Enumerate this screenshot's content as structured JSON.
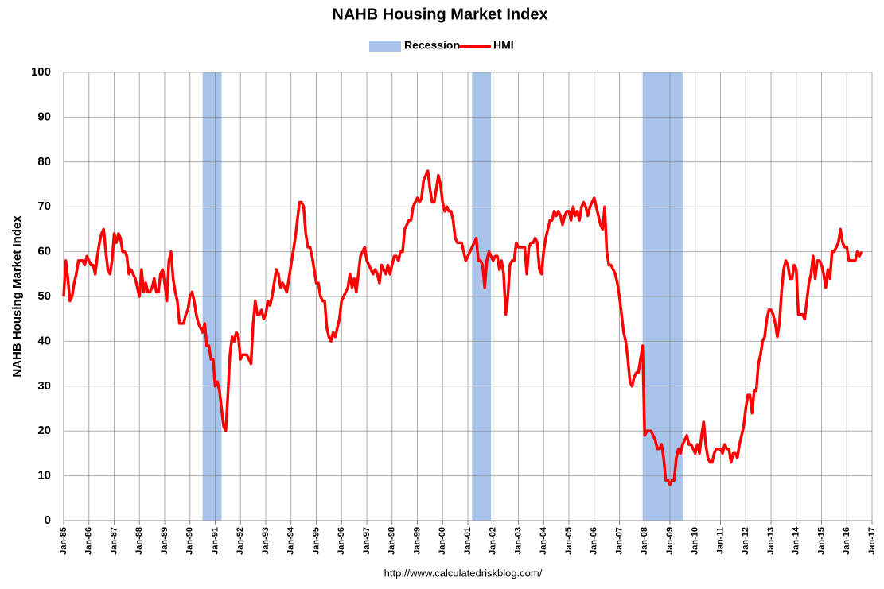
{
  "chart_data": {
    "type": "line",
    "title": "NAHB Housing Market Index",
    "y_label": "NAHB Housing Market Index",
    "source": "http://www.calculatedriskblog.com/",
    "legend": "top",
    "grid": true,
    "bands": {
      "name": "Recession",
      "color": "#a9c4eb",
      "ranges": [
        {
          "start": "1990-07",
          "end": "1991-03"
        },
        {
          "start": "2001-03",
          "end": "2001-11"
        },
        {
          "start": "2007-12",
          "end": "2009-06"
        }
      ]
    },
    "x": [
      "1985-01",
      "1985-02",
      "1985-03",
      "1985-04",
      "1985-05",
      "1985-06",
      "1985-07",
      "1985-08",
      "1985-09",
      "1985-10",
      "1985-11",
      "1985-12",
      "1986-01",
      "1986-02",
      "1986-03",
      "1986-04",
      "1986-05",
      "1986-06",
      "1986-07",
      "1986-08",
      "1986-09",
      "1986-10",
      "1986-11",
      "1986-12",
      "1987-01",
      "1987-02",
      "1987-03",
      "1987-04",
      "1987-05",
      "1987-06",
      "1987-07",
      "1987-08",
      "1987-09",
      "1987-10",
      "1987-11",
      "1987-12",
      "1988-01",
      "1988-02",
      "1988-03",
      "1988-04",
      "1988-05",
      "1988-06",
      "1988-07",
      "1988-08",
      "1988-09",
      "1988-10",
      "1988-11",
      "1988-12",
      "1989-01",
      "1989-02",
      "1989-03",
      "1989-04",
      "1989-05",
      "1989-06",
      "1989-07",
      "1989-08",
      "1989-09",
      "1989-10",
      "1989-11",
      "1989-12",
      "1990-01",
      "1990-02",
      "1990-03",
      "1990-04",
      "1990-05",
      "1990-06",
      "1990-07",
      "1990-08",
      "1990-09",
      "1990-10",
      "1990-11",
      "1990-12",
      "1991-01",
      "1991-02",
      "1991-03",
      "1991-04",
      "1991-05",
      "1991-06",
      "1991-07",
      "1991-08",
      "1991-09",
      "1991-10",
      "1991-11",
      "1991-12",
      "1992-01",
      "1992-02",
      "1992-03",
      "1992-04",
      "1992-05",
      "1992-06",
      "1992-07",
      "1992-08",
      "1992-09",
      "1992-10",
      "1992-11",
      "1992-12",
      "1993-01",
      "1993-02",
      "1993-03",
      "1993-04",
      "1993-05",
      "1993-06",
      "1993-07",
      "1993-08",
      "1993-09",
      "1993-10",
      "1993-11",
      "1993-12",
      "1994-01",
      "1994-02",
      "1994-03",
      "1994-04",
      "1994-05",
      "1994-06",
      "1994-07",
      "1994-08",
      "1994-09",
      "1994-10",
      "1994-11",
      "1994-12",
      "1995-01",
      "1995-02",
      "1995-03",
      "1995-04",
      "1995-05",
      "1995-06",
      "1995-07",
      "1995-08",
      "1995-09",
      "1995-10",
      "1995-11",
      "1995-12",
      "1996-01",
      "1996-02",
      "1996-03",
      "1996-04",
      "1996-05",
      "1996-06",
      "1996-07",
      "1996-08",
      "1996-09",
      "1996-10",
      "1996-11",
      "1996-12",
      "1997-01",
      "1997-02",
      "1997-03",
      "1997-04",
      "1997-05",
      "1997-06",
      "1997-07",
      "1997-08",
      "1997-09",
      "1997-10",
      "1997-11",
      "1997-12",
      "1998-01",
      "1998-02",
      "1998-03",
      "1998-04",
      "1998-05",
      "1998-06",
      "1998-07",
      "1998-08",
      "1998-09",
      "1998-10",
      "1998-11",
      "1998-12",
      "1999-01",
      "1999-02",
      "1999-03",
      "1999-04",
      "1999-05",
      "1999-06",
      "1999-07",
      "1999-08",
      "1999-09",
      "1999-10",
      "1999-11",
      "1999-12",
      "2000-01",
      "2000-02",
      "2000-03",
      "2000-04",
      "2000-05",
      "2000-06",
      "2000-07",
      "2000-08",
      "2000-09",
      "2000-10",
      "2000-11",
      "2000-12",
      "2001-01",
      "2001-02",
      "2001-03",
      "2001-04",
      "2001-05",
      "2001-06",
      "2001-07",
      "2001-08",
      "2001-09",
      "2001-10",
      "2001-11",
      "2001-12",
      "2002-01",
      "2002-02",
      "2002-03",
      "2002-04",
      "2002-05",
      "2002-06",
      "2002-07",
      "2002-08",
      "2002-09",
      "2002-10",
      "2002-11",
      "2002-12",
      "2003-01",
      "2003-02",
      "2003-03",
      "2003-04",
      "2003-05",
      "2003-06",
      "2003-07",
      "2003-08",
      "2003-09",
      "2003-10",
      "2003-11",
      "2003-12",
      "2004-01",
      "2004-02",
      "2004-03",
      "2004-04",
      "2004-05",
      "2004-06",
      "2004-07",
      "2004-08",
      "2004-09",
      "2004-10",
      "2004-11",
      "2004-12",
      "2005-01",
      "2005-02",
      "2005-03",
      "2005-04",
      "2005-05",
      "2005-06",
      "2005-07",
      "2005-08",
      "2005-09",
      "2005-10",
      "2005-11",
      "2005-12",
      "2006-01",
      "2006-02",
      "2006-03",
      "2006-04",
      "2006-05",
      "2006-06",
      "2006-07",
      "2006-08",
      "2006-09",
      "2006-10",
      "2006-11",
      "2006-12",
      "2007-01",
      "2007-02",
      "2007-03",
      "2007-04",
      "2007-05",
      "2007-06",
      "2007-07",
      "2007-08",
      "2007-09",
      "2007-10",
      "2007-11",
      "2007-12",
      "2008-01",
      "2008-02",
      "2008-03",
      "2008-04",
      "2008-05",
      "2008-06",
      "2008-07",
      "2008-08",
      "2008-09",
      "2008-10",
      "2008-11",
      "2008-12",
      "2009-01",
      "2009-02",
      "2009-03",
      "2009-04",
      "2009-05",
      "2009-06",
      "2009-07",
      "2009-08",
      "2009-09",
      "2009-10",
      "2009-11",
      "2009-12",
      "2010-01",
      "2010-02",
      "2010-03",
      "2010-04",
      "2010-05",
      "2010-06",
      "2010-07",
      "2010-08",
      "2010-09",
      "2010-10",
      "2010-11",
      "2010-12",
      "2011-01",
      "2011-02",
      "2011-03",
      "2011-04",
      "2011-05",
      "2011-06",
      "2011-07",
      "2011-08",
      "2011-09",
      "2011-10",
      "2011-11",
      "2011-12",
      "2012-01",
      "2012-02",
      "2012-03",
      "2012-04",
      "2012-05",
      "2012-06",
      "2012-07",
      "2012-08",
      "2012-09",
      "2012-10",
      "2012-11",
      "2012-12",
      "2013-01",
      "2013-02",
      "2013-03",
      "2013-04",
      "2013-05",
      "2013-06",
      "2013-07",
      "2013-08",
      "2013-09",
      "2013-10",
      "2013-11",
      "2013-12",
      "2014-01",
      "2014-02",
      "2014-03",
      "2014-04",
      "2014-05",
      "2014-06",
      "2014-07",
      "2014-08",
      "2014-09",
      "2014-10",
      "2014-11",
      "2014-12",
      "2015-01",
      "2015-02",
      "2015-03",
      "2015-04",
      "2015-05",
      "2015-06",
      "2015-07",
      "2015-08",
      "2015-09",
      "2015-10",
      "2015-11",
      "2015-12",
      "2016-01",
      "2016-02",
      "2016-03",
      "2016-04",
      "2016-05",
      "2016-06",
      "2016-07",
      "2016-08"
    ],
    "series": [
      {
        "name": "HMI",
        "color": "#ff0000",
        "values": [
          50,
          58,
          54,
          49,
          50,
          53,
          55,
          58,
          58,
          58,
          57,
          59,
          58,
          57,
          57,
          55,
          59,
          62,
          64,
          65,
          60,
          56,
          55,
          58,
          64,
          62,
          64,
          63,
          60,
          60,
          59,
          55,
          56,
          55,
          54,
          52,
          50,
          56,
          51,
          53,
          51,
          51,
          52,
          54,
          51,
          51,
          55,
          56,
          53,
          49,
          58,
          60,
          54,
          51,
          49,
          44,
          44,
          44,
          46,
          47,
          50,
          51,
          49,
          46,
          44,
          43,
          42,
          44,
          39,
          39,
          36,
          36,
          30,
          31,
          29,
          25,
          21,
          20,
          28,
          37,
          41,
          40,
          42,
          41,
          36,
          37,
          37,
          37,
          36,
          35,
          44,
          49,
          46,
          46,
          47,
          45,
          46,
          49,
          48,
          50,
          53,
          56,
          55,
          52,
          53,
          52,
          51,
          54,
          57,
          60,
          63,
          67,
          71,
          71,
          70,
          64,
          61,
          61,
          59,
          56,
          53,
          53,
          50,
          49,
          49,
          43,
          41,
          40,
          42,
          41,
          43,
          45,
          49,
          50,
          51,
          52,
          55,
          52,
          54,
          51,
          55,
          59,
          60,
          61,
          58,
          57,
          56,
          55,
          56,
          55,
          53,
          57,
          56,
          55,
          57,
          55,
          57,
          59,
          59,
          58,
          60,
          60,
          65,
          66,
          67,
          67,
          70,
          71,
          72,
          71,
          72,
          76,
          77,
          78,
          74,
          71,
          71,
          74,
          77,
          75,
          71,
          69,
          70,
          69,
          69,
          67,
          63,
          62,
          62,
          62,
          60,
          58,
          59,
          60,
          61,
          62,
          63,
          58,
          58,
          57,
          52,
          58,
          60,
          59,
          58,
          59,
          59,
          56,
          58,
          55,
          46,
          50,
          57,
          58,
          58,
          62,
          61,
          61,
          61,
          61,
          55,
          61,
          62,
          62,
          63,
          62,
          56,
          55,
          60,
          63,
          65,
          67,
          67,
          69,
          68,
          69,
          68,
          66,
          68,
          69,
          69,
          67,
          70,
          68,
          69,
          67,
          70,
          71,
          70,
          68,
          70,
          71,
          72,
          70,
          68,
          66,
          65,
          70,
          60,
          57,
          57,
          56,
          55,
          53,
          50,
          46,
          42,
          40,
          36,
          31,
          30,
          32,
          33,
          33,
          36,
          39,
          19,
          20,
          20,
          20,
          19,
          18,
          16,
          16,
          17,
          14,
          9,
          9,
          8,
          9,
          9,
          14,
          16,
          15,
          17,
          18,
          19,
          17,
          17,
          16,
          15,
          17,
          15,
          19,
          22,
          17,
          14,
          13,
          13,
          15,
          16,
          16,
          16,
          15,
          17,
          16,
          16,
          13,
          15,
          15,
          14,
          17,
          19,
          21,
          25,
          28,
          28,
          24,
          29,
          29,
          35,
          37,
          40,
          41,
          45,
          47,
          47,
          46,
          44,
          41,
          44,
          51,
          56,
          58,
          57,
          54,
          54,
          57,
          56,
          46,
          46,
          46,
          45,
          49,
          53,
          55,
          59,
          54,
          58,
          58,
          57,
          55,
          52,
          56,
          54,
          60,
          60,
          61,
          62,
          65,
          62,
          61,
          61,
          58,
          58,
          58,
          58,
          60,
          59,
          60
        ]
      }
    ],
    "xlim": [
      "1985-01",
      "2017-01"
    ],
    "xticks": [
      {
        "value": "1985-01",
        "label": "Jan-85"
      },
      {
        "value": "1986-01",
        "label": "Jan-86"
      },
      {
        "value": "1987-01",
        "label": "Jan-87"
      },
      {
        "value": "1988-01",
        "label": "Jan-88"
      },
      {
        "value": "1989-01",
        "label": "Jan-89"
      },
      {
        "value": "1990-01",
        "label": "Jan-90"
      },
      {
        "value": "1991-01",
        "label": "Jan-91"
      },
      {
        "value": "1992-01",
        "label": "Jan-92"
      },
      {
        "value": "1993-01",
        "label": "Jan-93"
      },
      {
        "value": "1994-01",
        "label": "Jan-94"
      },
      {
        "value": "1995-01",
        "label": "Jan-95"
      },
      {
        "value": "1996-01",
        "label": "Jan-96"
      },
      {
        "value": "1997-01",
        "label": "Jan-97"
      },
      {
        "value": "1998-01",
        "label": "Jan-98"
      },
      {
        "value": "1999-01",
        "label": "Jan-99"
      },
      {
        "value": "2000-01",
        "label": "Jan-00"
      },
      {
        "value": "2001-01",
        "label": "Jan-01"
      },
      {
        "value": "2002-01",
        "label": "Jan-02"
      },
      {
        "value": "2003-01",
        "label": "Jan-03"
      },
      {
        "value": "2004-01",
        "label": "Jan-04"
      },
      {
        "value": "2005-01",
        "label": "Jan-05"
      },
      {
        "value": "2006-01",
        "label": "Jan-06"
      },
      {
        "value": "2007-01",
        "label": "Jan-07"
      },
      {
        "value": "2008-01",
        "label": "Jan-08"
      },
      {
        "value": "2009-01",
        "label": "Jan-09"
      },
      {
        "value": "2010-01",
        "label": "Jan-10"
      },
      {
        "value": "2011-01",
        "label": "Jan-11"
      },
      {
        "value": "2012-01",
        "label": "Jan-12"
      },
      {
        "value": "2013-01",
        "label": "Jan-13"
      },
      {
        "value": "2014-01",
        "label": "Jan-14"
      },
      {
        "value": "2015-01",
        "label": "Jan-15"
      },
      {
        "value": "2016-01",
        "label": "Jan-16"
      },
      {
        "value": "2017-01",
        "label": "Jan-17"
      }
    ],
    "ylim": [
      0,
      100
    ],
    "yticks": [
      0,
      10,
      20,
      30,
      40,
      50,
      60,
      70,
      80,
      90,
      100
    ]
  }
}
